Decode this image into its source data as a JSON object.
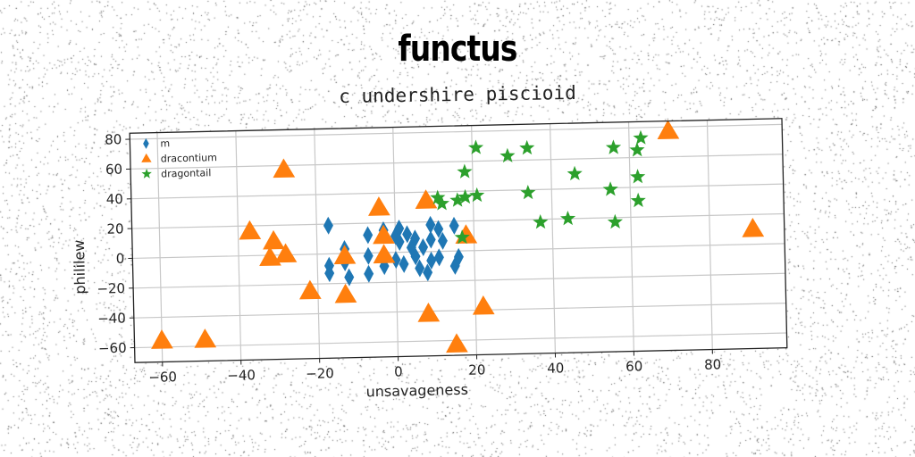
{
  "title": "functus",
  "chart_data": {
    "type": "scatter",
    "title": "c undershire piscioid",
    "xlabel": "unsavageness",
    "ylabel": "phililew",
    "xlim": [
      -67,
      99
    ],
    "ylim": [
      -70,
      84
    ],
    "xticks": [
      -60,
      -40,
      -20,
      0,
      20,
      40,
      60,
      80
    ],
    "yticks": [
      -60,
      -40,
      -20,
      0,
      20,
      40,
      60,
      80
    ],
    "xtick_labels": [
      "−60",
      "−40",
      "−20",
      "0",
      "20",
      "40",
      "60",
      "80"
    ],
    "ytick_labels": [
      "−60",
      "−40",
      "−20",
      "0",
      "20",
      "40",
      "60",
      "80"
    ],
    "grid": true,
    "legend_position": "top-left",
    "series": [
      {
        "name": "m",
        "marker": "diamond",
        "color": "#1f77b4",
        "points": [
          [
            -17,
            19
          ],
          [
            -17,
            -8
          ],
          [
            -17,
            -13
          ],
          [
            -13,
            3
          ],
          [
            -13,
            -6
          ],
          [
            -12,
            -16
          ],
          [
            -7,
            12
          ],
          [
            -7,
            -2
          ],
          [
            -7,
            -14
          ],
          [
            -3,
            15
          ],
          [
            -3,
            -9
          ],
          [
            0,
            11
          ],
          [
            0,
            -5
          ],
          [
            1,
            16
          ],
          [
            1,
            7
          ],
          [
            2,
            -8
          ],
          [
            3,
            12
          ],
          [
            4,
            3
          ],
          [
            5,
            -3
          ],
          [
            5,
            9
          ],
          [
            6,
            -11
          ],
          [
            7,
            3
          ],
          [
            8,
            -14
          ],
          [
            9,
            18
          ],
          [
            9,
            -6
          ],
          [
            9,
            8
          ],
          [
            11,
            15
          ],
          [
            11,
            -4
          ],
          [
            12,
            7
          ],
          [
            15,
            17
          ],
          [
            15,
            -10
          ],
          [
            16,
            -4
          ]
        ]
      },
      {
        "name": "dracontium",
        "marker": "triangle",
        "color": "#ff7f0e",
        "points": [
          [
            -60,
            -56
          ],
          [
            -49,
            -56
          ],
          [
            -37,
            16
          ],
          [
            -31,
            9
          ],
          [
            -32,
            -2
          ],
          [
            -28,
            0
          ],
          [
            -28,
            57
          ],
          [
            -22,
            -25
          ],
          [
            -13,
            -2
          ],
          [
            -13,
            -28
          ],
          [
            -4,
            30
          ],
          [
            -3,
            11
          ],
          [
            -3,
            -2
          ],
          [
            8,
            34
          ],
          [
            8,
            -42
          ],
          [
            18,
            10
          ],
          [
            15,
            -63
          ],
          [
            22,
            -38
          ],
          [
            70,
            77
          ],
          [
            91,
            10
          ]
        ]
      },
      {
        "name": "dragontail",
        "marker": "star",
        "color": "#2ca02c",
        "points": [
          [
            11,
            36
          ],
          [
            12,
            32
          ],
          [
            16,
            34
          ],
          [
            17,
            9
          ],
          [
            18,
            53
          ],
          [
            18,
            36
          ],
          [
            21,
            69
          ],
          [
            21,
            37
          ],
          [
            29,
            63
          ],
          [
            34,
            68
          ],
          [
            34,
            38
          ],
          [
            37,
            18
          ],
          [
            44,
            20
          ],
          [
            46,
            50
          ],
          [
            55,
            39
          ],
          [
            56,
            67
          ],
          [
            56,
            17
          ],
          [
            62,
            65
          ],
          [
            62,
            47
          ],
          [
            62,
            31
          ],
          [
            63,
            73
          ]
        ]
      }
    ]
  }
}
